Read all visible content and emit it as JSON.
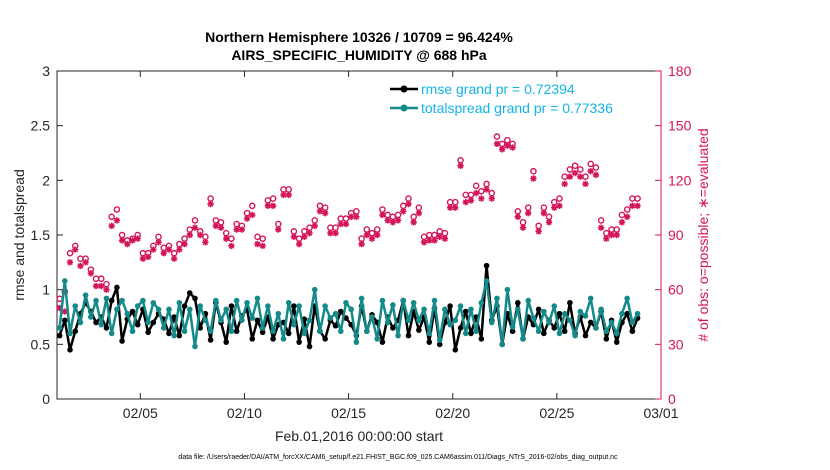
{
  "chart_data": {
    "type": "line",
    "title_line1": "Northern Hemisphere 10326 / 10709 = 96.424%",
    "title_line2": "AIRS_SPECIFIC_HUMIDITY @ 688 hPa",
    "xlabel": "Feb.01,2016 00:00:00 start",
    "ylabel_left": "rmse and totalspread",
    "ylabel_right": "# of obs: o=possible; ∗=evaluated",
    "footer": "data file: /Users/raeder/DAI/ATM_forcXX/CAM6_setup/f.e21.FHIST_BGC.f09_025.CAM6assim.011/Diags_NTrS_2016-02/obs_diag_output.nc",
    "xlim": [
      1,
      30
    ],
    "ylim_left": [
      0,
      3
    ],
    "ylim_right": [
      0,
      180
    ],
    "x_ticks": [
      5,
      10,
      15,
      20,
      25,
      30
    ],
    "x_tick_labels": [
      "02/05",
      "02/10",
      "02/15",
      "02/20",
      "02/25",
      "03/01"
    ],
    "y_left_ticks": [
      0,
      0.5,
      1,
      1.5,
      2,
      2.5,
      3
    ],
    "y_left_tick_labels": [
      "0",
      "0.5",
      "1",
      "1.5",
      "2",
      "2.5",
      "3"
    ],
    "y_right_ticks": [
      0,
      30,
      60,
      90,
      120,
      150,
      180
    ],
    "y_right_tick_labels": [
      "0",
      "30",
      "60",
      "90",
      "120",
      "150",
      "180"
    ],
    "x": [
      1.125,
      1.375,
      1.625,
      1.875,
      2.125,
      2.375,
      2.625,
      2.875,
      3.125,
      3.375,
      3.625,
      3.875,
      4.125,
      4.375,
      4.625,
      4.875,
      5.125,
      5.375,
      5.625,
      5.875,
      6.125,
      6.375,
      6.625,
      6.875,
      7.125,
      7.375,
      7.625,
      7.875,
      8.125,
      8.375,
      8.625,
      8.875,
      9.125,
      9.375,
      9.625,
      9.875,
      10.125,
      10.375,
      10.625,
      10.875,
      11.125,
      11.375,
      11.625,
      11.875,
      12.125,
      12.375,
      12.625,
      12.875,
      13.125,
      13.375,
      13.625,
      13.875,
      14.125,
      14.375,
      14.625,
      14.875,
      15.125,
      15.375,
      15.625,
      15.875,
      16.125,
      16.375,
      16.625,
      16.875,
      17.125,
      17.375,
      17.625,
      17.875,
      18.125,
      18.375,
      18.625,
      18.875,
      19.125,
      19.375,
      19.625,
      19.875,
      20.125,
      20.375,
      20.625,
      20.875,
      21.125,
      21.375,
      21.625,
      21.875,
      22.125,
      22.375,
      22.625,
      22.875,
      23.125,
      23.375,
      23.625,
      23.875,
      24.125,
      24.375,
      24.625,
      24.875,
      25.125,
      25.375,
      25.625,
      25.875,
      26.125,
      26.375,
      26.625,
      26.875,
      27.125,
      27.375,
      27.625,
      27.875,
      28.125,
      28.375,
      28.625,
      28.875
    ],
    "series": [
      {
        "name": "rmse grand pr = 0.72394",
        "color": "#000000",
        "marker": "dot",
        "axis": "left",
        "values": [
          0.58,
          0.72,
          0.45,
          0.62,
          0.78,
          0.88,
          0.8,
          0.7,
          0.75,
          0.65,
          0.9,
          1.02,
          0.53,
          0.73,
          0.8,
          0.68,
          0.82,
          0.61,
          0.7,
          0.78,
          0.73,
          0.6,
          0.75,
          0.58,
          0.85,
          0.97,
          0.92,
          0.65,
          0.78,
          0.54,
          0.88,
          0.7,
          0.52,
          0.85,
          0.62,
          0.76,
          0.82,
          0.55,
          0.72,
          0.61,
          0.75,
          0.55,
          0.68,
          0.7,
          0.6,
          0.85,
          0.52,
          0.73,
          0.48,
          0.85,
          0.62,
          0.55,
          0.72,
          0.67,
          0.8,
          0.74,
          0.68,
          0.58,
          0.85,
          0.62,
          0.77,
          0.7,
          0.52,
          0.75,
          0.65,
          0.72,
          0.9,
          0.58,
          0.8,
          0.63,
          0.75,
          0.52,
          0.83,
          0.5,
          0.7,
          0.85,
          0.45,
          0.65,
          0.8,
          0.6,
          0.75,
          0.55,
          1.22,
          0.72,
          0.85,
          0.5,
          0.78,
          0.62,
          0.88,
          0.55,
          0.75,
          0.68,
          0.82,
          0.6,
          0.72,
          0.65,
          0.78,
          0.62,
          0.88,
          0.6,
          0.75,
          0.58,
          0.7,
          0.65,
          0.8,
          0.55,
          0.72,
          0.52,
          0.7,
          0.78,
          0.62,
          0.74
        ]
      },
      {
        "name": "totalspread grand pr = 0.77336",
        "color": "#148a8a",
        "marker": "dot",
        "axis": "left",
        "values": [
          0.65,
          1.08,
          0.6,
          0.85,
          0.7,
          0.95,
          0.75,
          0.9,
          0.68,
          0.92,
          0.6,
          0.82,
          0.9,
          0.78,
          0.62,
          0.85,
          0.9,
          0.7,
          0.88,
          0.82,
          0.65,
          0.82,
          0.58,
          0.88,
          0.62,
          0.82,
          0.48,
          0.85,
          0.72,
          0.62,
          0.9,
          0.72,
          0.82,
          0.62,
          0.9,
          0.72,
          0.88,
          0.74,
          0.92,
          0.65,
          0.85,
          0.62,
          0.78,
          0.55,
          0.88,
          0.68,
          0.85,
          0.6,
          0.72,
          1.0,
          0.62,
          0.85,
          0.74,
          0.78,
          0.62,
          0.88,
          0.82,
          0.52,
          0.92,
          0.62,
          0.75,
          0.55,
          0.9,
          0.7,
          0.86,
          0.58,
          0.9,
          0.72,
          0.88,
          0.72,
          0.82,
          0.6,
          0.9,
          0.54,
          0.82,
          0.68,
          0.72,
          0.85,
          0.6,
          0.82,
          0.62,
          0.88,
          1.08,
          0.7,
          0.92,
          0.5,
          1.0,
          0.66,
          0.82,
          0.55,
          0.9,
          0.74,
          0.62,
          0.8,
          0.7,
          0.85,
          0.6,
          0.78,
          0.72,
          0.58,
          0.8,
          0.76,
          0.92,
          0.65,
          0.82,
          0.62,
          0.7,
          0.6,
          0.78,
          0.92,
          0.7,
          0.78
        ]
      }
    ],
    "obs_possible": [
      55,
      59,
      80,
      84,
      77,
      77,
      71,
      66,
      66,
      63,
      100,
      104,
      90,
      87,
      88,
      90,
      80,
      80,
      84,
      89,
      83,
      84,
      80,
      85,
      88,
      93,
      98,
      92,
      89,
      110,
      98,
      97,
      91,
      88,
      96,
      95,
      102,
      106,
      89,
      88,
      109,
      110,
      96,
      115,
      115,
      92,
      88,
      92,
      94,
      98,
      106,
      105,
      94,
      94,
      99,
      99,
      102,
      103,
      88,
      93,
      91,
      93,
      104,
      101,
      100,
      101,
      106,
      110,
      100,
      105,
      89,
      90,
      90,
      92,
      91,
      108,
      108,
      131,
      112,
      112,
      117,
      114,
      118,
      113,
      144,
      140,
      142,
      140,
      103,
      97,
      105,
      125,
      95,
      105,
      100,
      108,
      110,
      122,
      126,
      128,
      126,
      122,
      129,
      127,
      98,
      91,
      93,
      93,
      101,
      104,
      110,
      110
    ],
    "obs_evaluated": [
      50,
      48,
      75,
      82,
      73,
      75,
      69,
      62,
      62,
      60,
      95,
      98,
      87,
      85,
      87,
      88,
      77,
      78,
      82,
      86,
      80,
      82,
      77,
      82,
      85,
      90,
      94,
      90,
      86,
      107,
      95,
      94,
      88,
      84,
      93,
      93,
      99,
      101,
      85,
      84,
      106,
      106,
      93,
      112,
      112,
      89,
      85,
      89,
      91,
      95,
      103,
      102,
      91,
      91,
      96,
      96,
      100,
      100,
      85,
      90,
      88,
      90,
      101,
      98,
      97,
      98,
      103,
      107,
      97,
      102,
      86,
      87,
      87,
      89,
      88,
      105,
      105,
      128,
      108,
      109,
      113,
      110,
      115,
      110,
      140,
      137,
      139,
      138,
      100,
      94,
      102,
      121,
      92,
      102,
      97,
      105,
      106,
      118,
      122,
      124,
      122,
      118,
      125,
      123,
      94,
      88,
      90,
      90,
      97,
      100,
      106,
      106
    ],
    "obs_possible_color": "#d4145a",
    "obs_evaluated_color": "#d4145a",
    "legend_position": "top-right",
    "legend_color": "#14b4e6"
  }
}
